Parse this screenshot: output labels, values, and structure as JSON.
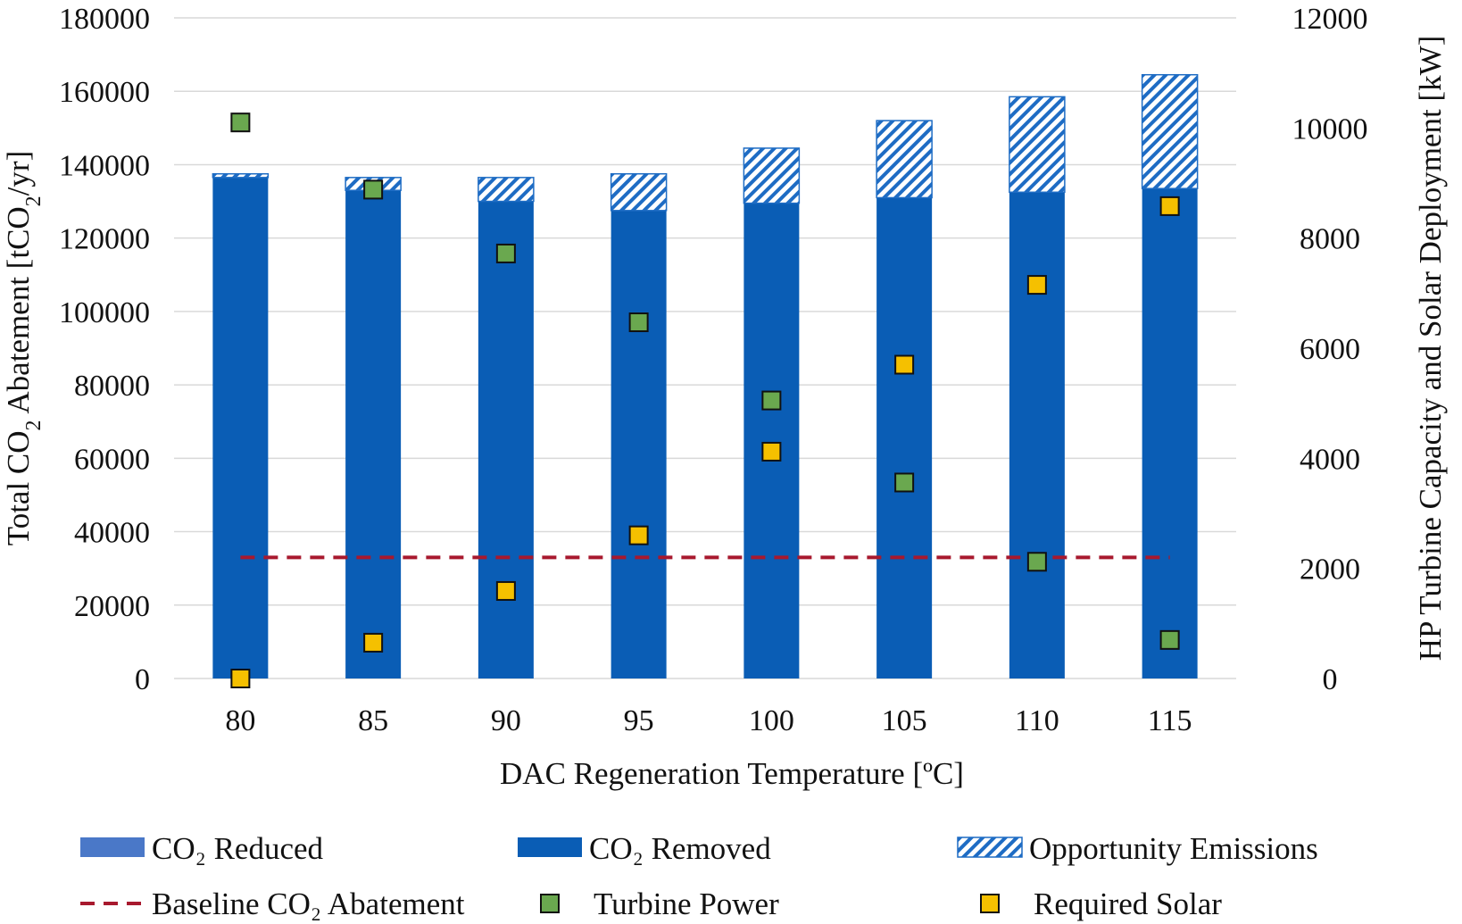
{
  "chart_data": {
    "type": "bar",
    "categories": [
      "80",
      "85",
      "90",
      "95",
      "100",
      "105",
      "110",
      "115"
    ],
    "xlabel": "DAC Regeneration Temperature [ºC]",
    "ylabel_left": {
      "prefix": "Total CO",
      "sub": "2",
      "suffix": " Abatement [tCO",
      "sub2": "2",
      "suffix2": "/yr]"
    },
    "ylabel_right": "HP Turbine Capacity and Solar Deployment [kW]",
    "ylim_left": [
      0,
      180000
    ],
    "ylim_right": [
      0,
      12000
    ],
    "left_ticks": [
      "0",
      "20000",
      "40000",
      "60000",
      "80000",
      "100000",
      "120000",
      "140000",
      "160000",
      "180000"
    ],
    "right_ticks": [
      "0",
      "2000",
      "4000",
      "6000",
      "8000",
      "10000",
      "12000"
    ],
    "grid": true,
    "legend_position": "bottom",
    "series": [
      {
        "name": "CO₂ Reduced",
        "kind": "stacked-bar",
        "color": "#4a78c8",
        "values": [
          0,
          0,
          0,
          0,
          0,
          0,
          0,
          0
        ]
      },
      {
        "name": "CO₂ Removed",
        "kind": "stacked-bar",
        "color": "#0a5db5",
        "values": [
          136500,
          133000,
          130000,
          127500,
          129500,
          131000,
          132500,
          133500
        ]
      },
      {
        "name": "Opportunity Emissions",
        "kind": "stacked-bar-hatched",
        "color": "#1e6cc4",
        "values": [
          1000,
          3500,
          6500,
          10000,
          15000,
          21000,
          26000,
          31000
        ]
      },
      {
        "name": "Baseline CO₂ Abatement",
        "kind": "dashed-line",
        "axis": "left",
        "color": "#a8192e",
        "values": [
          33000,
          33000,
          33000,
          33000,
          33000,
          33000,
          33000,
          33000
        ]
      },
      {
        "name": "Turbine Power",
        "kind": "marker",
        "axis": "right",
        "color": "#6aa84f",
        "values": [
          10100,
          8880,
          7720,
          6470,
          5050,
          3560,
          2120,
          700
        ]
      },
      {
        "name": "Required Solar",
        "kind": "marker",
        "axis": "right",
        "color": "#f5c000",
        "values": [
          0,
          650,
          1590,
          2600,
          4120,
          5700,
          7150,
          8580
        ]
      }
    ]
  }
}
